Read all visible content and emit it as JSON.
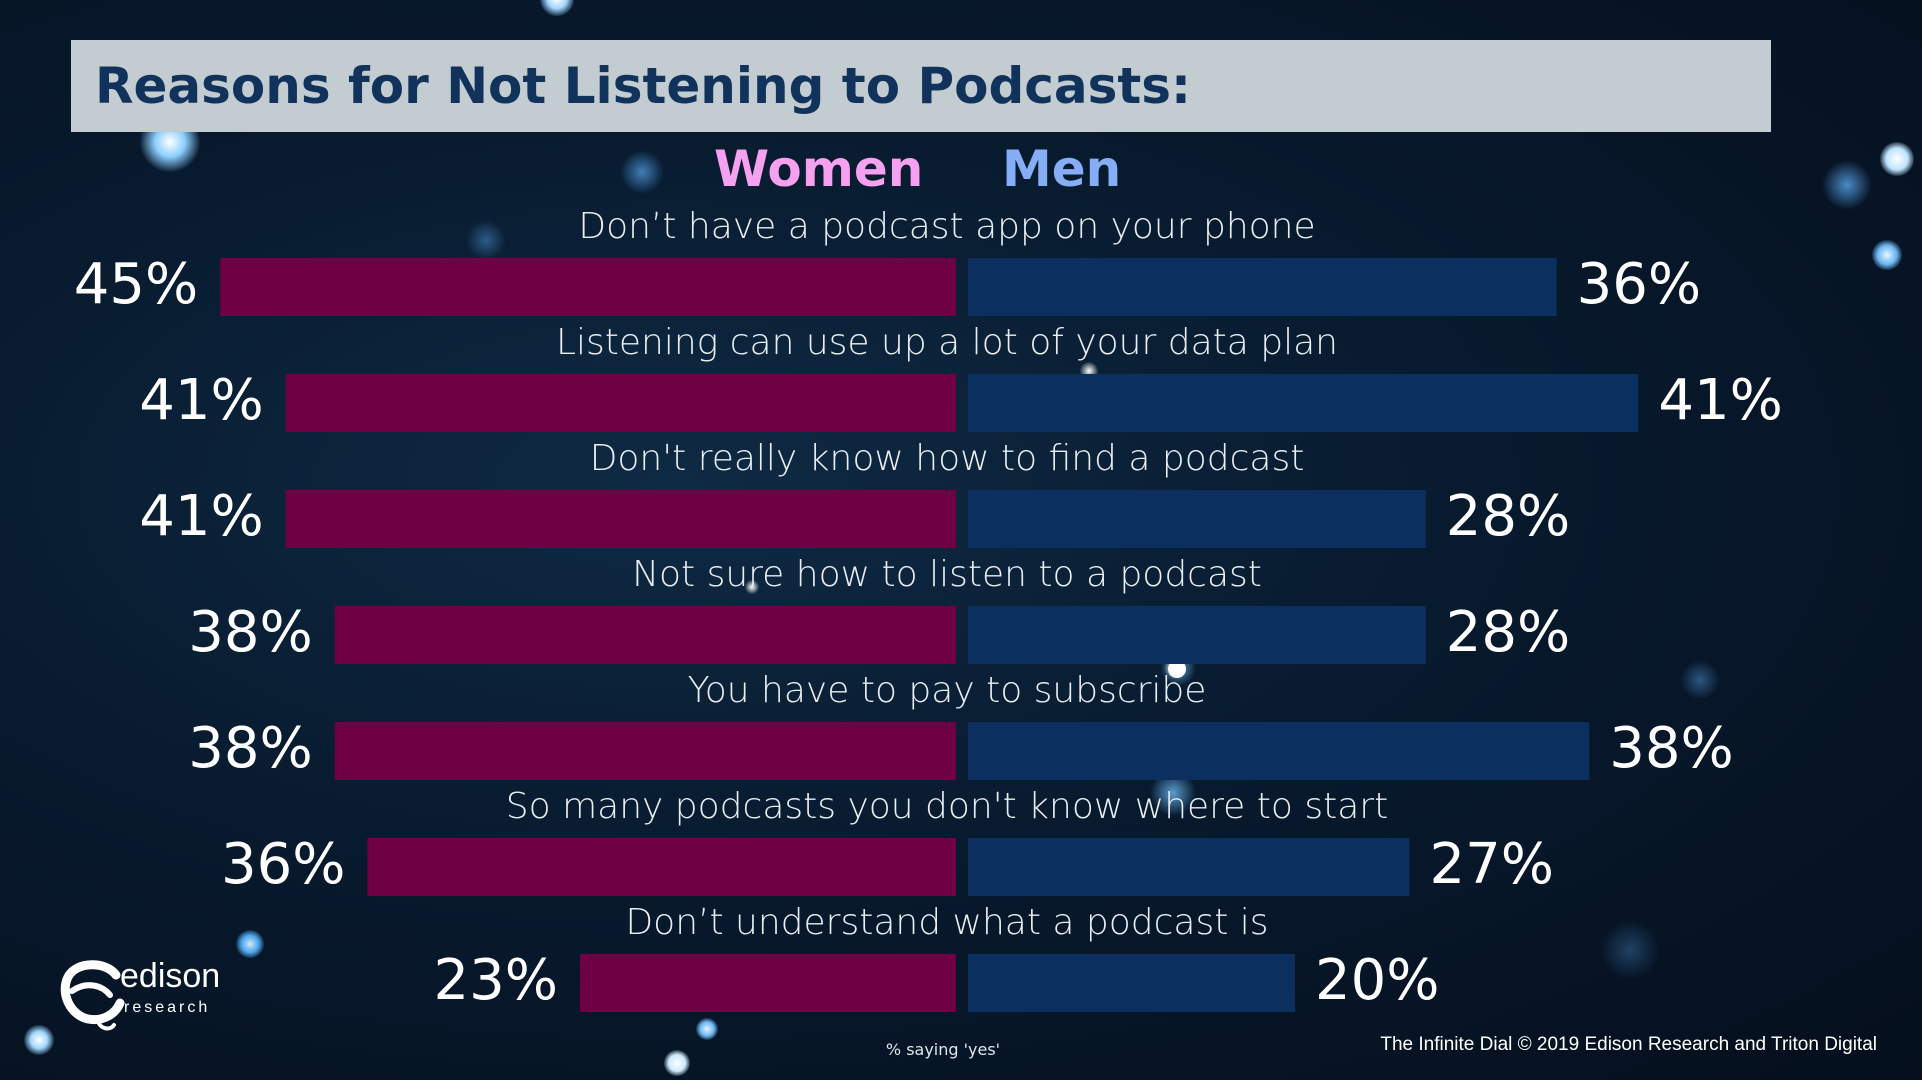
{
  "colors": {
    "women": "#6e0043",
    "men": "#0b2f5e",
    "women_legend": "#f5a1ef",
    "men_legend": "#86aef6",
    "title_bg": "#c3ccd1",
    "title_text": "#11335b"
  },
  "legend": {
    "women": "Women",
    "men": "Men"
  },
  "footnote": "% saying 'yes'",
  "source": "The Infinite Dial   © 2019 Edison Research and Triton Digital",
  "logo": {
    "name": "edison",
    "sub": "research"
  },
  "chart_data": {
    "type": "bar",
    "orientation": "horizontal-butterfly",
    "title": "Reasons for Not Listening to Podcasts:",
    "categories": [
      "Don’t have a podcast app on your phone",
      "Listening can use up a lot of your data plan",
      "Don't really know how to find a podcast",
      "Not sure how to listen to a podcast",
      "You have to pay to subscribe",
      "So many podcasts you don't know where to start",
      "Don’t understand what a podcast is"
    ],
    "series": [
      {
        "name": "Women",
        "values": [
          45,
          41,
          41,
          38,
          38,
          36,
          23
        ],
        "labels": [
          "45%",
          "41%",
          "41%",
          "38%",
          "38%",
          "36%",
          "23%"
        ]
      },
      {
        "name": "Men",
        "values": [
          36,
          41,
          28,
          28,
          38,
          27,
          20
        ],
        "labels": [
          "36%",
          "41%",
          "28%",
          "28%",
          "38%",
          "27%",
          "20%"
        ]
      }
    ],
    "unit": "%"
  }
}
